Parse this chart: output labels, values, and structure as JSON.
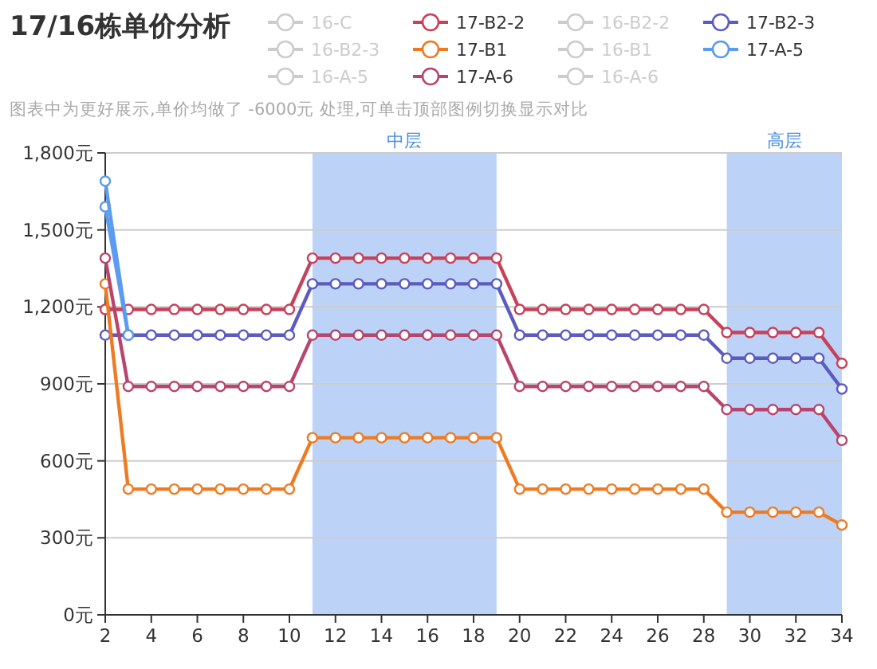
{
  "chart_data": {
    "type": "line",
    "title": "17/16栋单价分析",
    "subtitle": "图表中为更好展示,单价均做了 -6000元 处理,可单击顶部图例切换显示对比",
    "x": [
      2,
      3,
      4,
      5,
      6,
      7,
      8,
      9,
      10,
      11,
      12,
      13,
      14,
      15,
      16,
      17,
      18,
      19,
      20,
      21,
      22,
      23,
      24,
      25,
      26,
      27,
      28,
      29,
      30,
      31,
      32,
      33,
      34
    ],
    "xlim": [
      2,
      34
    ],
    "xticks": [
      2,
      4,
      6,
      8,
      10,
      12,
      14,
      16,
      18,
      20,
      22,
      24,
      26,
      28,
      30,
      32,
      34
    ],
    "ylim": [
      0,
      1800
    ],
    "yticks": [
      {
        "value": 0,
        "label": "0元"
      },
      {
        "value": 300,
        "label": "300元"
      },
      {
        "value": 600,
        "label": "600元"
      },
      {
        "value": 900,
        "label": "900元"
      },
      {
        "value": 1200,
        "label": "1,200元"
      },
      {
        "value": 1500,
        "label": "1,500元"
      },
      {
        "value": 1800,
        "label": "1,800元"
      }
    ],
    "grid": "y",
    "legend": "top",
    "marker": "circle",
    "line_style": "solid",
    "bands": [
      {
        "axis": "x",
        "from": 11,
        "to": 19,
        "label": "中层",
        "color": "#bcd3f7"
      },
      {
        "axis": "x",
        "from": 29,
        "to": 34,
        "label": "高层",
        "color": "#bcd3f7"
      }
    ],
    "series": [
      {
        "color": "#5b9cf0",
        "values": [
          1590,
          1090,
          null,
          null,
          null,
          null,
          null,
          null,
          null,
          null,
          null,
          null,
          null,
          null,
          null,
          null,
          null,
          null,
          null,
          null,
          null,
          null,
          null,
          null,
          null,
          null,
          null,
          null,
          null,
          null,
          null,
          null,
          null
        ]
      },
      {
        "name": "16-C",
        "color": "#cccccc",
        "values": [
          null,
          null,
          null,
          null,
          null,
          null,
          null,
          null,
          null,
          null,
          null,
          null,
          null,
          null,
          null,
          null,
          null,
          null,
          null,
          null,
          null,
          null,
          null,
          null,
          null,
          null,
          null,
          null,
          null,
          null,
          null,
          null,
          null
        ]
      },
      {
        "name": "17-B2-2",
        "color": "#c8415a",
        "values": [
          1190,
          1190,
          1190,
          1190,
          1190,
          1190,
          1190,
          1190,
          1190,
          1390,
          1390,
          1390,
          1390,
          1390,
          1390,
          1390,
          1390,
          1390,
          1190,
          1190,
          1190,
          1190,
          1190,
          1190,
          1190,
          1190,
          1190,
          1100,
          1100,
          1100,
          1100,
          1100,
          980
        ]
      },
      {
        "name": "16-B2-2",
        "color": "#cccccc",
        "values": [
          null,
          null,
          null,
          null,
          null,
          null,
          null,
          null,
          null,
          null,
          null,
          null,
          null,
          null,
          null,
          null,
          null,
          null,
          null,
          null,
          null,
          null,
          null,
          null,
          null,
          null,
          null,
          null,
          null,
          null,
          null,
          null,
          null
        ]
      },
      {
        "name": "17-B2-3",
        "color": "#5b5bc2",
        "values": [
          1090,
          1090,
          1090,
          1090,
          1090,
          1090,
          1090,
          1090,
          1090,
          1290,
          1290,
          1290,
          1290,
          1290,
          1290,
          1290,
          1290,
          1290,
          1090,
          1090,
          1090,
          1090,
          1090,
          1090,
          1090,
          1090,
          1090,
          1000,
          1000,
          1000,
          1000,
          1000,
          880
        ]
      },
      {
        "name": "16-B2-3",
        "color": "#cccccc",
        "values": [
          null,
          null,
          null,
          null,
          null,
          null,
          null,
          null,
          null,
          null,
          null,
          null,
          null,
          null,
          null,
          null,
          null,
          null,
          null,
          null,
          null,
          null,
          null,
          null,
          null,
          null,
          null,
          null,
          null,
          null,
          null,
          null,
          null
        ]
      },
      {
        "name": "17-B1",
        "color": "#ee7b22",
        "values": [
          1290,
          490,
          490,
          490,
          490,
          490,
          490,
          490,
          490,
          690,
          690,
          690,
          690,
          690,
          690,
          690,
          690,
          690,
          490,
          490,
          490,
          490,
          490,
          490,
          490,
          490,
          490,
          400,
          400,
          400,
          400,
          400,
          350
        ]
      },
      {
        "name": "16-B1",
        "color": "#cccccc",
        "values": [
          null,
          null,
          null,
          null,
          null,
          null,
          null,
          null,
          null,
          null,
          null,
          null,
          null,
          null,
          null,
          null,
          null,
          null,
          null,
          null,
          null,
          null,
          null,
          null,
          null,
          null,
          null,
          null,
          null,
          null,
          null,
          null,
          null
        ]
      },
      {
        "name": "17-A-5",
        "color": "#5b9cf0",
        "values": [
          1690,
          1090,
          null,
          null,
          null,
          null,
          null,
          null,
          null,
          null,
          null,
          null,
          null,
          null,
          null,
          null,
          null,
          null,
          null,
          null,
          null,
          null,
          null,
          null,
          null,
          null,
          null,
          null,
          null,
          null,
          null,
          null,
          null
        ]
      },
      {
        "name": "16-A-5",
        "color": "#cccccc",
        "values": [
          null,
          null,
          null,
          null,
          null,
          null,
          null,
          null,
          null,
          null,
          null,
          null,
          null,
          null,
          null,
          null,
          null,
          null,
          null,
          null,
          null,
          null,
          null,
          null,
          null,
          null,
          null,
          null,
          null,
          null,
          null,
          null,
          null
        ]
      },
      {
        "name": "17-A-6",
        "color": "#b8456b",
        "values": [
          1390,
          890,
          890,
          890,
          890,
          890,
          890,
          890,
          890,
          1090,
          1090,
          1090,
          1090,
          1090,
          1090,
          1090,
          1090,
          1090,
          890,
          890,
          890,
          890,
          890,
          890,
          890,
          890,
          890,
          800,
          800,
          800,
          800,
          800,
          680
        ]
      },
      {
        "name": "16-A-6",
        "color": "#cccccc",
        "values": [
          null,
          null,
          null,
          null,
          null,
          null,
          null,
          null,
          null,
          null,
          null,
          null,
          null,
          null,
          null,
          null,
          null,
          null,
          null,
          null,
          null,
          null,
          null,
          null,
          null,
          null,
          null,
          null,
          null,
          null,
          null,
          null,
          null
        ]
      }
    ]
  }
}
